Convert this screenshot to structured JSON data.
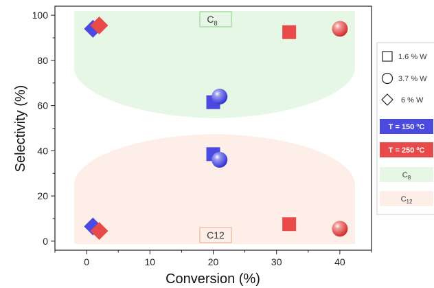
{
  "chart_data": {
    "type": "scatter",
    "xlabel": "Conversion (%)",
    "ylabel": "Selectivity (%)",
    "xlim": [
      -5,
      45
    ],
    "ylim": [
      -4,
      104
    ],
    "xticks": [
      0,
      10,
      20,
      30,
      40
    ],
    "yticks": [
      0,
      20,
      40,
      60,
      80,
      100
    ],
    "xtick_labels": [
      "0",
      "10",
      "20",
      "30",
      "40"
    ],
    "ytick_labels": [
      "0",
      "20",
      "40",
      "60",
      "80",
      "100"
    ],
    "regions": [
      {
        "label": "C",
        "subscript": "8",
        "color": "#e6f7e6",
        "border": "#8fcf8f"
      },
      {
        "label": "C12",
        "subscript": "",
        "color": "#fdeee8",
        "border": "#e8a88e"
      }
    ],
    "series": [
      {
        "shape": "square",
        "color": "#4a4ae0",
        "points": [
          {
            "x": 20,
            "y": 61.5
          },
          {
            "x": 20,
            "y": 38.5
          }
        ]
      },
      {
        "shape": "circle",
        "color": "#4a4ae0",
        "points": [
          {
            "x": 21,
            "y": 64
          },
          {
            "x": 21,
            "y": 36
          }
        ]
      },
      {
        "shape": "diamond",
        "color": "#4a4ae0",
        "points": [
          {
            "x": 1,
            "y": 94
          },
          {
            "x": 1,
            "y": 6.5
          }
        ]
      },
      {
        "shape": "square",
        "color": "#e84a4a",
        "points": [
          {
            "x": 32,
            "y": 92.5
          },
          {
            "x": 32,
            "y": 7.5
          }
        ]
      },
      {
        "shape": "circle",
        "color": "#e84a4a",
        "points": [
          {
            "x": 40,
            "y": 94
          },
          {
            "x": 40,
            "y": 5.5
          }
        ]
      },
      {
        "shape": "diamond",
        "color": "#e84a4a",
        "points": [
          {
            "x": 2,
            "y": 95.5
          },
          {
            "x": 2,
            "y": 4.5
          }
        ]
      }
    ],
    "legend": {
      "placement": "right",
      "items": [
        {
          "kind": "square",
          "label": "1.6 % W"
        },
        {
          "kind": "circle",
          "label": "3.7 % W"
        },
        {
          "kind": "diamond",
          "label": "6 % W"
        },
        {
          "kind": "box",
          "label": "T = 150 ºC",
          "color": "#4a4ae0"
        },
        {
          "kind": "box",
          "label": "T = 250 ºC",
          "color": "#e84a4a"
        },
        {
          "kind": "region",
          "label": "C",
          "subscript": "8",
          "color": "#e6f7e6"
        },
        {
          "kind": "region",
          "label": "C",
          "subscript": "12",
          "color": "#fdeee8"
        }
      ]
    }
  }
}
